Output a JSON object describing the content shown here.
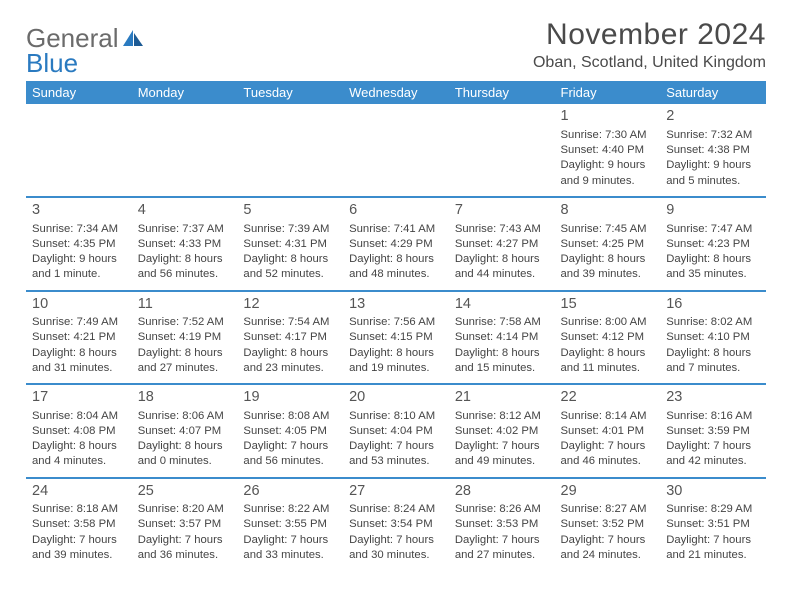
{
  "logo": {
    "general": "General",
    "blue": "Blue"
  },
  "title": "November 2024",
  "location": "Oban, Scotland, United Kingdom",
  "colors": {
    "header_bg": "#3b8ccc",
    "header_fg": "#ffffff",
    "rule": "#3b8ccc",
    "text": "#444444",
    "title": "#4a4a4a",
    "logo_gray": "#6b6b6b",
    "logo_blue": "#2a7ac0",
    "background": "#ffffff"
  },
  "typography": {
    "title_fontsize": 30,
    "location_fontsize": 16,
    "dayheader_fontsize": 13,
    "daynum_fontsize": 14.5,
    "body_fontsize": 11.3,
    "logo_fontsize": 26
  },
  "day_headers": [
    "Sunday",
    "Monday",
    "Tuesday",
    "Wednesday",
    "Thursday",
    "Friday",
    "Saturday"
  ],
  "weeks": [
    [
      null,
      null,
      null,
      null,
      null,
      {
        "n": "1",
        "sunrise": "Sunrise: 7:30 AM",
        "sunset": "Sunset: 4:40 PM",
        "d1": "Daylight: 9 hours",
        "d2": "and 9 minutes."
      },
      {
        "n": "2",
        "sunrise": "Sunrise: 7:32 AM",
        "sunset": "Sunset: 4:38 PM",
        "d1": "Daylight: 9 hours",
        "d2": "and 5 minutes."
      }
    ],
    [
      {
        "n": "3",
        "sunrise": "Sunrise: 7:34 AM",
        "sunset": "Sunset: 4:35 PM",
        "d1": "Daylight: 9 hours",
        "d2": "and 1 minute."
      },
      {
        "n": "4",
        "sunrise": "Sunrise: 7:37 AM",
        "sunset": "Sunset: 4:33 PM",
        "d1": "Daylight: 8 hours",
        "d2": "and 56 minutes."
      },
      {
        "n": "5",
        "sunrise": "Sunrise: 7:39 AM",
        "sunset": "Sunset: 4:31 PM",
        "d1": "Daylight: 8 hours",
        "d2": "and 52 minutes."
      },
      {
        "n": "6",
        "sunrise": "Sunrise: 7:41 AM",
        "sunset": "Sunset: 4:29 PM",
        "d1": "Daylight: 8 hours",
        "d2": "and 48 minutes."
      },
      {
        "n": "7",
        "sunrise": "Sunrise: 7:43 AM",
        "sunset": "Sunset: 4:27 PM",
        "d1": "Daylight: 8 hours",
        "d2": "and 44 minutes."
      },
      {
        "n": "8",
        "sunrise": "Sunrise: 7:45 AM",
        "sunset": "Sunset: 4:25 PM",
        "d1": "Daylight: 8 hours",
        "d2": "and 39 minutes."
      },
      {
        "n": "9",
        "sunrise": "Sunrise: 7:47 AM",
        "sunset": "Sunset: 4:23 PM",
        "d1": "Daylight: 8 hours",
        "d2": "and 35 minutes."
      }
    ],
    [
      {
        "n": "10",
        "sunrise": "Sunrise: 7:49 AM",
        "sunset": "Sunset: 4:21 PM",
        "d1": "Daylight: 8 hours",
        "d2": "and 31 minutes."
      },
      {
        "n": "11",
        "sunrise": "Sunrise: 7:52 AM",
        "sunset": "Sunset: 4:19 PM",
        "d1": "Daylight: 8 hours",
        "d2": "and 27 minutes."
      },
      {
        "n": "12",
        "sunrise": "Sunrise: 7:54 AM",
        "sunset": "Sunset: 4:17 PM",
        "d1": "Daylight: 8 hours",
        "d2": "and 23 minutes."
      },
      {
        "n": "13",
        "sunrise": "Sunrise: 7:56 AM",
        "sunset": "Sunset: 4:15 PM",
        "d1": "Daylight: 8 hours",
        "d2": "and 19 minutes."
      },
      {
        "n": "14",
        "sunrise": "Sunrise: 7:58 AM",
        "sunset": "Sunset: 4:14 PM",
        "d1": "Daylight: 8 hours",
        "d2": "and 15 minutes."
      },
      {
        "n": "15",
        "sunrise": "Sunrise: 8:00 AM",
        "sunset": "Sunset: 4:12 PM",
        "d1": "Daylight: 8 hours",
        "d2": "and 11 minutes."
      },
      {
        "n": "16",
        "sunrise": "Sunrise: 8:02 AM",
        "sunset": "Sunset: 4:10 PM",
        "d1": "Daylight: 8 hours",
        "d2": "and 7 minutes."
      }
    ],
    [
      {
        "n": "17",
        "sunrise": "Sunrise: 8:04 AM",
        "sunset": "Sunset: 4:08 PM",
        "d1": "Daylight: 8 hours",
        "d2": "and 4 minutes."
      },
      {
        "n": "18",
        "sunrise": "Sunrise: 8:06 AM",
        "sunset": "Sunset: 4:07 PM",
        "d1": "Daylight: 8 hours",
        "d2": "and 0 minutes."
      },
      {
        "n": "19",
        "sunrise": "Sunrise: 8:08 AM",
        "sunset": "Sunset: 4:05 PM",
        "d1": "Daylight: 7 hours",
        "d2": "and 56 minutes."
      },
      {
        "n": "20",
        "sunrise": "Sunrise: 8:10 AM",
        "sunset": "Sunset: 4:04 PM",
        "d1": "Daylight: 7 hours",
        "d2": "and 53 minutes."
      },
      {
        "n": "21",
        "sunrise": "Sunrise: 8:12 AM",
        "sunset": "Sunset: 4:02 PM",
        "d1": "Daylight: 7 hours",
        "d2": "and 49 minutes."
      },
      {
        "n": "22",
        "sunrise": "Sunrise: 8:14 AM",
        "sunset": "Sunset: 4:01 PM",
        "d1": "Daylight: 7 hours",
        "d2": "and 46 minutes."
      },
      {
        "n": "23",
        "sunrise": "Sunrise: 8:16 AM",
        "sunset": "Sunset: 3:59 PM",
        "d1": "Daylight: 7 hours",
        "d2": "and 42 minutes."
      }
    ],
    [
      {
        "n": "24",
        "sunrise": "Sunrise: 8:18 AM",
        "sunset": "Sunset: 3:58 PM",
        "d1": "Daylight: 7 hours",
        "d2": "and 39 minutes."
      },
      {
        "n": "25",
        "sunrise": "Sunrise: 8:20 AM",
        "sunset": "Sunset: 3:57 PM",
        "d1": "Daylight: 7 hours",
        "d2": "and 36 minutes."
      },
      {
        "n": "26",
        "sunrise": "Sunrise: 8:22 AM",
        "sunset": "Sunset: 3:55 PM",
        "d1": "Daylight: 7 hours",
        "d2": "and 33 minutes."
      },
      {
        "n": "27",
        "sunrise": "Sunrise: 8:24 AM",
        "sunset": "Sunset: 3:54 PM",
        "d1": "Daylight: 7 hours",
        "d2": "and 30 minutes."
      },
      {
        "n": "28",
        "sunrise": "Sunrise: 8:26 AM",
        "sunset": "Sunset: 3:53 PM",
        "d1": "Daylight: 7 hours",
        "d2": "and 27 minutes."
      },
      {
        "n": "29",
        "sunrise": "Sunrise: 8:27 AM",
        "sunset": "Sunset: 3:52 PM",
        "d1": "Daylight: 7 hours",
        "d2": "and 24 minutes."
      },
      {
        "n": "30",
        "sunrise": "Sunrise: 8:29 AM",
        "sunset": "Sunset: 3:51 PM",
        "d1": "Daylight: 7 hours",
        "d2": "and 21 minutes."
      }
    ]
  ]
}
